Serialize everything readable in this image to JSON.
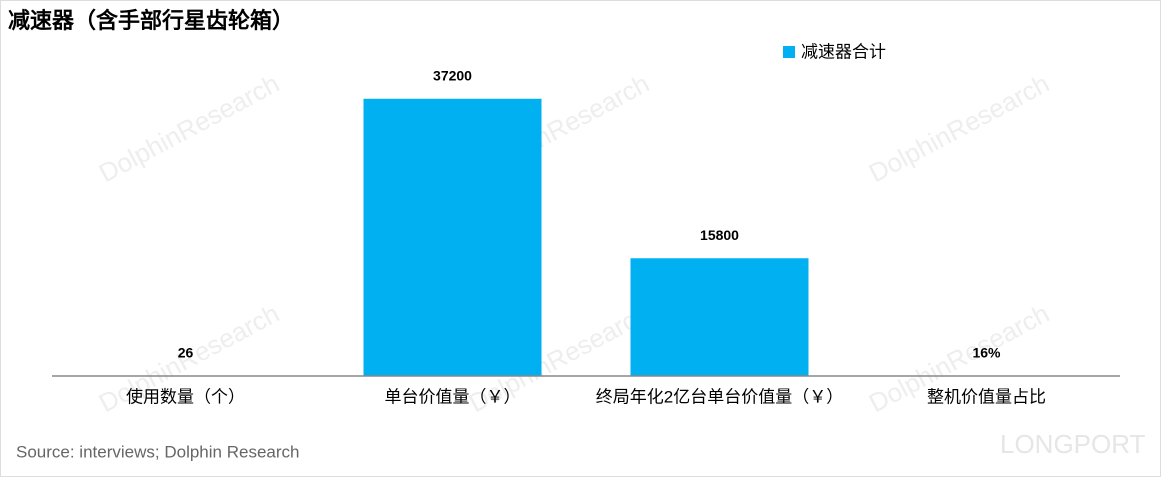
{
  "chart_data": {
    "type": "bar",
    "title": "减速器（含手部行星齿轮箱）",
    "categories": [
      "使用数量（个）",
      "单台价值量（￥）",
      "终局年化2亿台单台价值量（￥）",
      "整机价值量占比"
    ],
    "series": [
      {
        "name": "减速器合计",
        "color": "#00b0f0",
        "values": [
          26,
          37200,
          15800,
          16
        ],
        "value_labels": [
          "26",
          "37200",
          "15800",
          "16%"
        ]
      }
    ],
    "ylim": [
      0,
      42000
    ],
    "legend": "top-right",
    "source": "Source: interviews; Dolphin Research",
    "watermarks": [
      "DolphinResearch",
      "LONGPORT"
    ]
  }
}
